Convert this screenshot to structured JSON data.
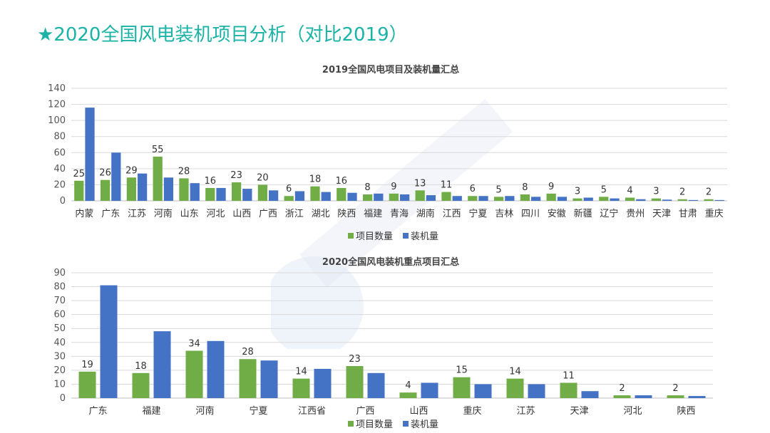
{
  "slide": {
    "title": "★2020全国风电装机项目分析（对比2019）"
  },
  "colors": {
    "title": "#1bb3a6",
    "green": "#70ad47",
    "blue": "#4472c4",
    "grid": "#d9d9d9"
  },
  "chart_data": [
    {
      "type": "bar",
      "title": "2019全国风电项目及装机量汇总",
      "categories": [
        "内蒙",
        "广东",
        "江苏",
        "河南",
        "山东",
        "河北",
        "山西",
        "广西",
        "浙江",
        "湖北",
        "陕西",
        "福建",
        "青海",
        "湖南",
        "江西",
        "宁夏",
        "吉林",
        "四川",
        "安徽",
        "新疆",
        "辽宁",
        "贵州",
        "天津",
        "甘肃",
        "重庆"
      ],
      "series": [
        {
          "name": "项目数量",
          "values": [
            25,
            26,
            29,
            55,
            28,
            16,
            23,
            20,
            6,
            18,
            16,
            8,
            9,
            13,
            11,
            6,
            5,
            8,
            9,
            3,
            5,
            4,
            3,
            2,
            2
          ],
          "labeled": true
        },
        {
          "name": "装机量",
          "values": [
            116,
            60,
            34,
            29,
            22,
            16,
            15,
            13,
            12,
            11,
            10,
            9,
            8,
            7,
            6,
            6,
            6,
            5,
            5,
            4,
            3,
            2,
            1.5,
            1,
            1
          ],
          "labeled": false
        }
      ],
      "ylim": [
        0,
        140
      ],
      "yticks": [
        0,
        20,
        40,
        60,
        80,
        100,
        120,
        140
      ],
      "grid": true,
      "legend_position": "bottom"
    },
    {
      "type": "bar",
      "title": "2020全国风电装机重点项目汇总",
      "categories": [
        "广东",
        "福建",
        "河南",
        "宁夏",
        "江西省",
        "广西",
        "山西",
        "重庆",
        "江苏",
        "天津",
        "河北",
        "陕西"
      ],
      "series": [
        {
          "name": "项目数量",
          "values": [
            19,
            18,
            34,
            28,
            14,
            23,
            4,
            15,
            14,
            11,
            2,
            2
          ],
          "labeled": true
        },
        {
          "name": "装机量",
          "values": [
            81,
            48,
            41,
            27,
            21,
            18,
            11,
            10,
            10,
            5,
            2,
            1.5
          ],
          "labeled": false
        }
      ],
      "ylim": [
        0,
        90
      ],
      "yticks": [
        0,
        10,
        20,
        30,
        40,
        50,
        60,
        70,
        80,
        90
      ],
      "grid": true,
      "legend_position": "bottom"
    }
  ]
}
